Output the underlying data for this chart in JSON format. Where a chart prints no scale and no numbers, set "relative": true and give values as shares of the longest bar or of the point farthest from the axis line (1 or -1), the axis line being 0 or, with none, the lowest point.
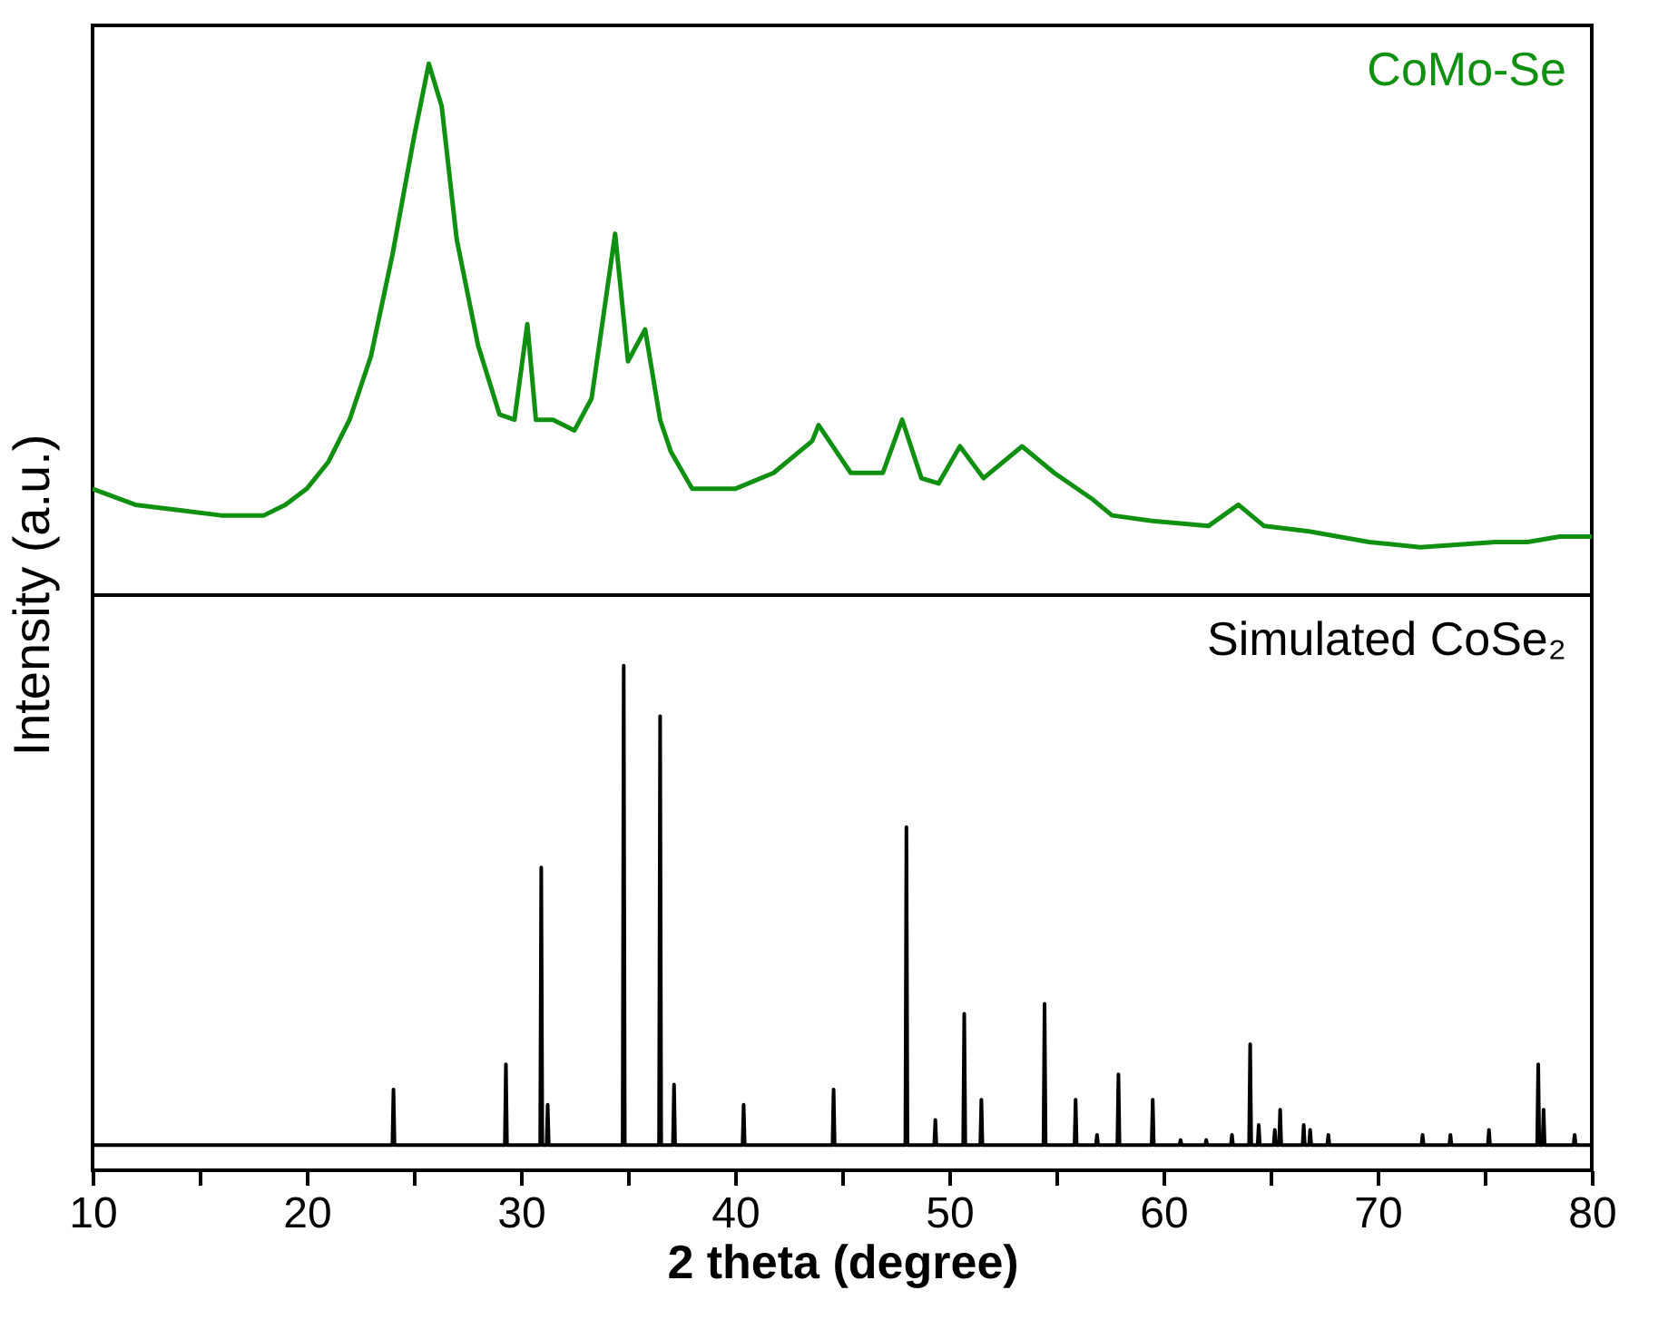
{
  "chart_data": [
    {
      "type": "line",
      "relative": true,
      "ylabel": "Intensity (a.u.)",
      "xlim": [
        10,
        80
      ],
      "tick_labels": false,
      "series": [
        {
          "name": "CoMo-Se",
          "color": "#109010",
          "x": [
            10,
            12,
            14,
            16,
            17,
            18,
            19,
            20,
            21,
            22,
            23,
            24,
            25,
            25.7,
            26.3,
            27,
            28,
            29,
            29.7,
            30.3,
            30.7,
            31.5,
            32.5,
            33.3,
            34.4,
            35,
            35.8,
            36.5,
            37,
            38,
            40,
            41.8,
            43.6,
            43.9,
            45.4,
            46.9,
            47.8,
            48.7,
            49.5,
            50.5,
            51.6,
            53.4,
            54.9,
            56.7,
            57.6,
            59.4,
            62.1,
            63.5,
            64.7,
            66.8,
            69.6,
            72,
            75.5,
            77,
            78.5,
            80
          ],
          "values": [
            0.2,
            0.17,
            0.16,
            0.15,
            0.15,
            0.15,
            0.17,
            0.2,
            0.25,
            0.33,
            0.45,
            0.64,
            0.86,
            1,
            0.92,
            0.67,
            0.47,
            0.34,
            0.33,
            0.51,
            0.33,
            0.33,
            0.31,
            0.37,
            0.68,
            0.44,
            0.5,
            0.33,
            0.27,
            0.2,
            0.2,
            0.23,
            0.29,
            0.32,
            0.23,
            0.23,
            0.33,
            0.22,
            0.21,
            0.28,
            0.22,
            0.28,
            0.23,
            0.18,
            0.15,
            0.14,
            0.13,
            0.17,
            0.13,
            0.12,
            0.1,
            0.09,
            0.1,
            0.1,
            0.11,
            0.11
          ]
        }
      ]
    },
    {
      "type": "line",
      "relative": true,
      "xlabel": "2 theta (degree)",
      "xlim": [
        10,
        80
      ],
      "tick_labels": "x",
      "xticks": [
        10,
        {
          "value": 15,
          "label": null
        },
        20,
        {
          "value": 25,
          "label": null
        },
        30,
        {
          "value": 35,
          "label": null
        },
        40,
        {
          "value": 45,
          "label": null
        },
        50,
        {
          "value": 55,
          "label": null
        },
        60,
        {
          "value": 65,
          "label": null
        },
        70,
        {
          "value": 75,
          "label": null
        },
        80
      ],
      "series": [
        {
          "name": "Simulated CoSe₂",
          "color": "#000000",
          "x": [
            10,
            24,
            24.05,
            24.1,
            29.25,
            29.3,
            29.35,
            30.9,
            30.95,
            31,
            31.2,
            31.25,
            31.3,
            34.75,
            34.8,
            34.85,
            36.45,
            36.5,
            36.55,
            37.1,
            37.15,
            37.2,
            40.35,
            40.4,
            40.45,
            44.55,
            44.6,
            44.65,
            47.95,
            48,
            48.05,
            49.3,
            49.35,
            49.4,
            50.65,
            50.7,
            50.75,
            51.45,
            51.5,
            51.55,
            54.4,
            54.45,
            54.5,
            55.85,
            55.9,
            55.95,
            56.85,
            56.9,
            56.95,
            57.85,
            57.9,
            57.95,
            59.45,
            59.5,
            59.55,
            60.75,
            60.8,
            60.85,
            61.95,
            62,
            62.05,
            63.15,
            63.2,
            63.25,
            64,
            64.05,
            64.1,
            64.4,
            64.45,
            64.5,
            65.15,
            65.2,
            65.25,
            65.4,
            65.45,
            65.5,
            66.5,
            66.55,
            66.6,
            66.8,
            66.85,
            66.9,
            67.65,
            67.7,
            67.75,
            72.05,
            72.1,
            72.15,
            73.35,
            73.4,
            73.45,
            75.15,
            75.2,
            75.25,
            77.45,
            77.5,
            77.55,
            77.7,
            77.75,
            77.8,
            79.15,
            79.2,
            79.25,
            80
          ],
          "values": [
            0.05,
            0.05,
            0.16,
            0.05,
            0.05,
            0.21,
            0.05,
            0.05,
            0.6,
            0.05,
            0.05,
            0.13,
            0.05,
            0.05,
            1,
            0.05,
            0.05,
            0.9,
            0.05,
            0.05,
            0.17,
            0.05,
            0.05,
            0.13,
            0.05,
            0.05,
            0.16,
            0.05,
            0.05,
            0.68,
            0.05,
            0.05,
            0.1,
            0.05,
            0.05,
            0.31,
            0.05,
            0.05,
            0.14,
            0.05,
            0.05,
            0.33,
            0.05,
            0.05,
            0.14,
            0.05,
            0.05,
            0.07,
            0.05,
            0.05,
            0.19,
            0.05,
            0.05,
            0.14,
            0.05,
            0.05,
            0.06,
            0.05,
            0.05,
            0.06,
            0.05,
            0.05,
            0.07,
            0.05,
            0.05,
            0.25,
            0.05,
            0.05,
            0.09,
            0.05,
            0.05,
            0.08,
            0.05,
            0.05,
            0.12,
            0.05,
            0.05,
            0.09,
            0.05,
            0.05,
            0.08,
            0.05,
            0.05,
            0.07,
            0.05,
            0.05,
            0.07,
            0.05,
            0.05,
            0.07,
            0.05,
            0.05,
            0.08,
            0.05,
            0.05,
            0.21,
            0.05,
            0.05,
            0.12,
            0.05,
            0.05,
            0.07,
            0.05,
            0.05
          ]
        }
      ]
    }
  ]
}
